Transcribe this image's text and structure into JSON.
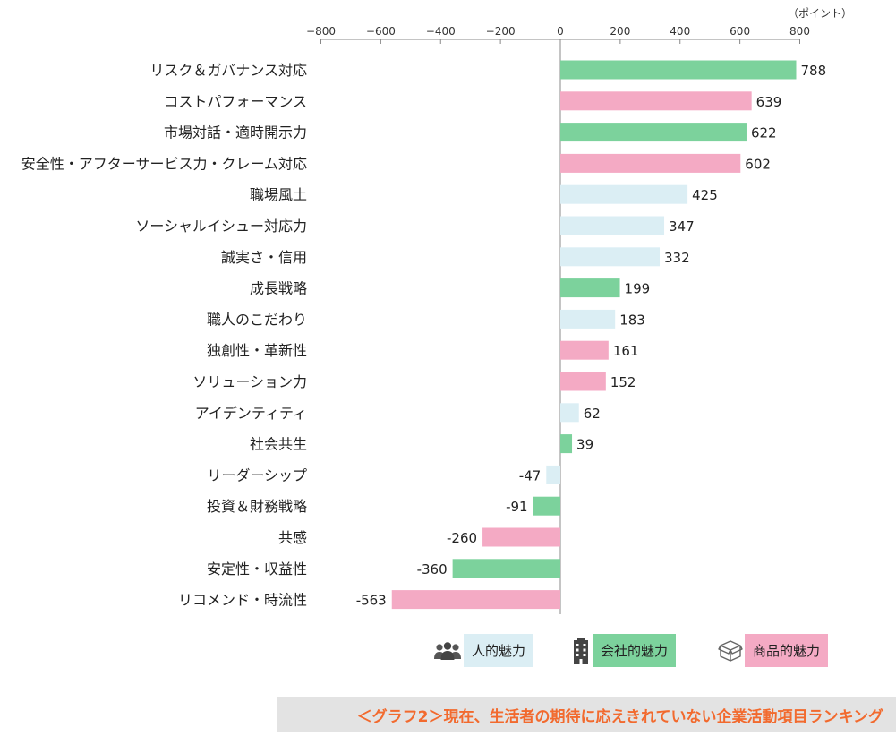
{
  "chart_data": {
    "type": "bar",
    "orientation": "horizontal",
    "unit_label": "（ポイント）",
    "xlim": [
      -800,
      800
    ],
    "ticks": [
      -800,
      -600,
      -400,
      -200,
      0,
      200,
      400,
      600,
      800
    ],
    "grid": false,
    "legend_position": "bottom",
    "groups": [
      {
        "key": "person",
        "name": "人的魅力",
        "color": "#dbeef4",
        "icon": "people-icon"
      },
      {
        "key": "company",
        "name": "会社的魅力",
        "color": "#7cd29c",
        "icon": "building-icon"
      },
      {
        "key": "product",
        "name": "商品的魅力",
        "color": "#f4aac4",
        "icon": "box-icon"
      }
    ],
    "categories": [
      "リスク＆ガバナンス対応",
      "コストパフォーマンス",
      "市場対話・適時開示力",
      "安全性・アフターサービス力・クレーム対応",
      "職場風土",
      "ソーシャルイシュー対応力",
      "誠実さ・信用",
      "成長戦略",
      "職人のこだわり",
      "独創性・革新性",
      "ソリューション力",
      "アイデンティティ",
      "社会共生",
      "リーダーシップ",
      "投資＆財務戦略",
      "共感",
      "安定性・収益性",
      "リコメンド・時流性"
    ],
    "values": [
      788,
      639,
      622,
      602,
      425,
      347,
      332,
      199,
      183,
      161,
      152,
      62,
      39,
      -47,
      -91,
      -260,
      -360,
      -563
    ],
    "value_labels": [
      "788",
      "639",
      "622",
      "602",
      "425",
      "347",
      "332",
      "199",
      "183",
      "161",
      "152",
      "62",
      "39",
      "-47",
      "-91",
      "-260",
      "-360",
      "-563"
    ],
    "bar_groups": [
      "company",
      "product",
      "company",
      "product",
      "person",
      "person",
      "person",
      "company",
      "person",
      "product",
      "product",
      "person",
      "company",
      "person",
      "company",
      "product",
      "company",
      "product"
    ]
  },
  "legend": {
    "person_label": "人的魅力",
    "company_label": "会社的魅力",
    "product_label": "商品的魅力"
  },
  "caption": "＜グラフ2＞現在、生活者の期待に応えきれていない企業活動項目ランキング",
  "colors": {
    "person": "#dbeef4",
    "company": "#7cd29c",
    "product": "#f4aac4",
    "caption_text": "#f26a2e",
    "caption_bg": "#e3e3e3"
  }
}
